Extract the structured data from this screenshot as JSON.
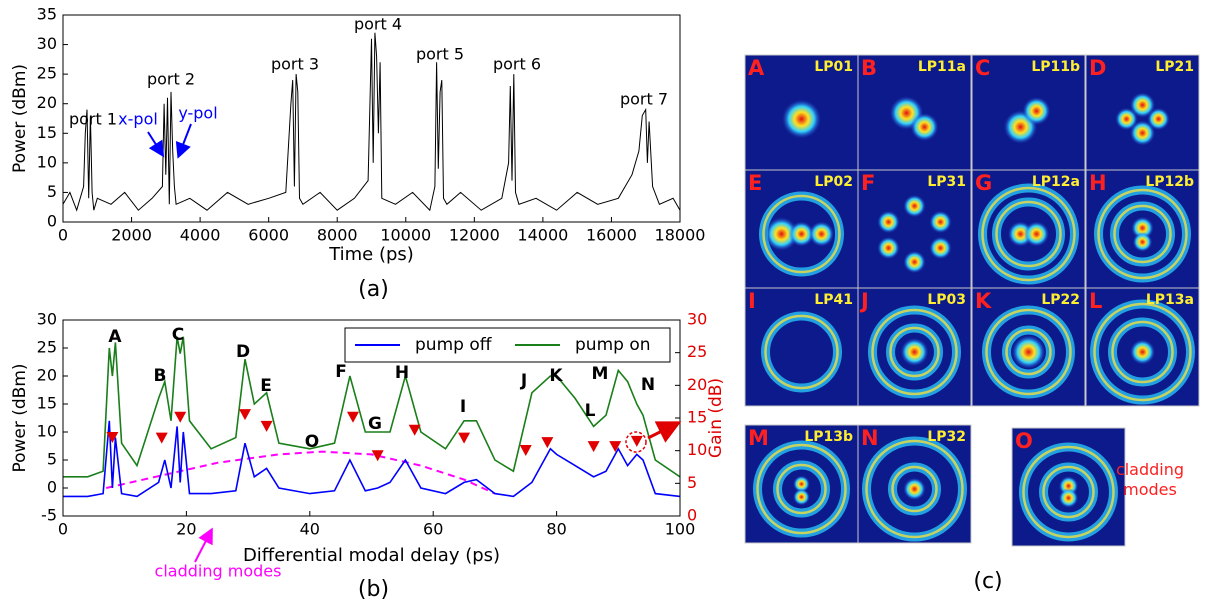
{
  "chart_data": [
    {
      "type": "line",
      "label": "(a)",
      "xlabel": "Time (ps)",
      "ylabel": "Power (dBm)",
      "xlim": [
        0,
        18000
      ],
      "xticks": [
        0,
        2000,
        4000,
        6000,
        8000,
        10000,
        12000,
        14000,
        16000,
        18000
      ],
      "ylim": [
        0,
        35
      ],
      "yticks": [
        0,
        5,
        10,
        15,
        20,
        25,
        30,
        35
      ],
      "x": [
        0,
        200,
        400,
        600,
        650,
        700,
        750,
        800,
        850,
        900,
        1000,
        1400,
        1800,
        2200,
        2600,
        2900,
        2950,
        3000,
        3050,
        3100,
        3150,
        3200,
        3250,
        3300,
        3700,
        4200,
        4800,
        5400,
        6000,
        6500,
        6650,
        6700,
        6750,
        6800,
        6850,
        6900,
        7000,
        7500,
        8000,
        8500,
        8900,
        9000,
        9050,
        9100,
        9150,
        9200,
        9250,
        9300,
        9700,
        10200,
        10700,
        10850,
        10900,
        10950,
        11000,
        11050,
        11100,
        11200,
        11600,
        12200,
        12800,
        13000,
        13050,
        13100,
        13150,
        13200,
        13300,
        13800,
        14400,
        15000,
        15600,
        16200,
        16600,
        16800,
        16900,
        17000,
        17050,
        17100,
        17200,
        17400,
        17800,
        18000
      ],
      "series": [
        {
          "color": "#000000",
          "values": [
            3,
            5,
            2,
            6,
            15,
            19,
            4,
            18,
            5,
            2,
            4,
            3,
            5,
            2,
            4,
            6,
            20,
            8,
            21,
            3,
            22,
            12,
            6,
            3,
            4,
            2,
            5,
            3,
            4,
            5,
            20,
            24,
            6,
            25,
            22,
            4,
            3,
            5,
            2,
            4,
            7,
            31,
            10,
            32,
            28,
            15,
            27,
            4,
            3,
            5,
            2,
            6,
            27,
            9,
            22,
            24,
            4,
            3,
            5,
            2,
            4,
            10,
            23,
            7,
            25,
            5,
            3,
            4,
            2,
            5,
            3,
            4,
            8,
            12,
            18,
            19,
            10,
            17,
            6,
            3,
            4,
            2
          ]
        }
      ],
      "annotations": [
        "port 1",
        "port 2",
        "port 3",
        "port 4",
        "port 5",
        "port 6",
        "port 7",
        "x-pol",
        "y-pol"
      ]
    },
    {
      "type": "line",
      "label": "(b)",
      "xlabel": "Differential modal delay (ps)",
      "ylabel": "Power (dBm)",
      "y2label": "Gain (dB)",
      "xlim": [
        0,
        100
      ],
      "xticks": [
        0,
        20,
        40,
        60,
        80,
        100
      ],
      "ylim": [
        -5,
        30
      ],
      "yticks": [
        -5,
        0,
        5,
        10,
        15,
        20,
        25,
        30
      ],
      "y2lim": [
        0,
        30
      ],
      "y2ticks": [
        0,
        5,
        10,
        15,
        20,
        25,
        30
      ],
      "legend": "upper right",
      "x": [
        0,
        4,
        6.5,
        7.5,
        8,
        8.5,
        9.5,
        12,
        15.5,
        16.5,
        17.5,
        18.5,
        19,
        19.5,
        20.5,
        24,
        28,
        29.5,
        31,
        33,
        35,
        40,
        44,
        46.5,
        49,
        51,
        53,
        55.5,
        58,
        62,
        65,
        67,
        70,
        73,
        76,
        79,
        80,
        83,
        86,
        88,
        90,
        91.5,
        93,
        94,
        96,
        100
      ],
      "series": [
        {
          "name": "pump off",
          "color": "#0000ff",
          "values": [
            -1.5,
            -1.5,
            -1,
            12,
            0,
            9,
            -1,
            -1.5,
            1,
            5,
            0,
            11,
            1,
            10,
            -1,
            -1,
            -0.5,
            8,
            2,
            3.5,
            0,
            -1,
            -0.5,
            5,
            -0.5,
            0,
            1,
            5,
            0,
            -1,
            1,
            1.5,
            -1,
            -1.5,
            1,
            7,
            6,
            4,
            2,
            3,
            7,
            4,
            6,
            5,
            -1,
            -1.5
          ]
        },
        {
          "name": "pump on",
          "color": "#1a7f1a",
          "values": [
            2,
            2,
            3,
            25,
            20,
            26,
            8,
            4,
            16,
            19,
            12,
            27,
            24,
            27,
            12,
            7,
            9,
            23,
            15,
            17,
            8,
            7,
            8,
            20,
            10,
            10,
            10,
            20,
            10,
            7,
            12,
            12,
            5,
            3,
            17,
            20,
            20,
            16,
            11,
            13,
            21,
            19,
            15,
            13,
            5,
            2
          ]
        }
      ],
      "gain": {
        "type": "scatter",
        "axis": "y2",
        "color": "#e00000",
        "x": [
          8,
          16,
          19,
          29.5,
          33,
          47,
          51,
          57,
          65,
          75,
          78.5,
          86,
          89.5,
          93
        ],
        "values": [
          12.1,
          12,
          15.2,
          15.6,
          13.8,
          15.2,
          9.3,
          13.2,
          12,
          10.1,
          11.3,
          10.7,
          10.7,
          11.5
        ]
      },
      "cladding": {
        "type": "line",
        "linestyle": "dashed",
        "color": "#ff00ff",
        "x": [
          7,
          15,
          25,
          35,
          42,
          50,
          58,
          65,
          70
        ],
        "values": [
          0,
          2,
          4.5,
          6,
          6.5,
          6,
          4,
          1.5,
          -1
        ]
      },
      "annotations": [
        "A",
        "B",
        "C",
        "D",
        "E",
        "F",
        "G",
        "H",
        "I",
        "J",
        "K",
        "L",
        "M",
        "N",
        "O",
        "cladding modes"
      ]
    }
  ],
  "mode_panel": {
    "label": "(c)",
    "annotation": "cladding modes",
    "tiles": [
      {
        "letter": "A",
        "mode": "LP01"
      },
      {
        "letter": "B",
        "mode": "LP11a"
      },
      {
        "letter": "C",
        "mode": "LP11b"
      },
      {
        "letter": "D",
        "mode": "LP21"
      },
      {
        "letter": "E",
        "mode": "LP02"
      },
      {
        "letter": "F",
        "mode": "LP31"
      },
      {
        "letter": "G",
        "mode": "LP12a"
      },
      {
        "letter": "H",
        "mode": "LP12b"
      },
      {
        "letter": "I",
        "mode": "LP41"
      },
      {
        "letter": "J",
        "mode": "LP03"
      },
      {
        "letter": "K",
        "mode": "LP22"
      },
      {
        "letter": "L",
        "mode": "LP13a"
      },
      {
        "letter": "M",
        "mode": "LP13b"
      },
      {
        "letter": "N",
        "mode": "LP32"
      },
      {
        "letter": "O"
      }
    ]
  }
}
